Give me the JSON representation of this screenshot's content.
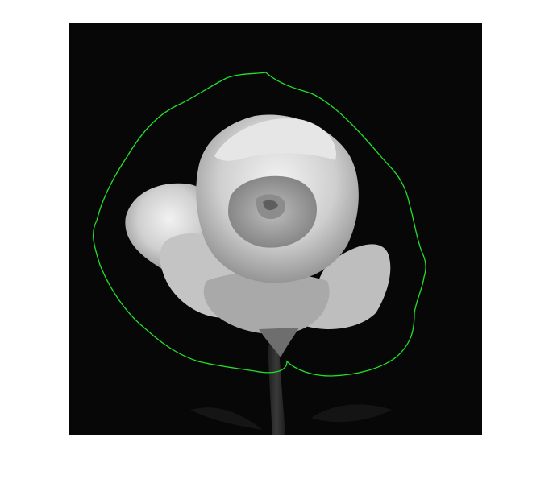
{
  "figure": {
    "background": "#ffffff"
  },
  "image": {
    "subject": "rose-photograph",
    "background_color": "#070707",
    "petal_color": "#d8d8d8"
  },
  "overlay": {
    "contour_color": "#22e02a",
    "contour_label": ""
  }
}
